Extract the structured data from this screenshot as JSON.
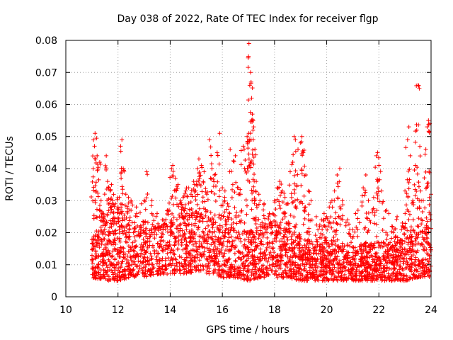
{
  "chart_data": {
    "type": "scatter",
    "title": "Day 038 of 2022, Rate Of TEC Index for receiver flgp",
    "xlabel": "GPS time / hours",
    "ylabel": "ROTI / TECUs",
    "xlim": [
      10,
      24
    ],
    "ylim": [
      0,
      0.08
    ],
    "xticks": [
      10,
      12,
      14,
      16,
      18,
      20,
      22,
      24
    ],
    "yticks": [
      0,
      0.01,
      0.02,
      0.03,
      0.04,
      0.05,
      0.06,
      0.07,
      0.08
    ],
    "xtick_labels": [
      "10",
      "12",
      "14",
      "16",
      "18",
      "20",
      "22",
      "24"
    ],
    "ytick_labels": [
      "0",
      "0.01",
      "0.02",
      "0.03",
      "0.04",
      "0.05",
      "0.06",
      "0.07",
      "0.08"
    ],
    "grid": true,
    "marker": "+",
    "series_color": "#ff0000",
    "data_range": {
      "x_start": 11.0,
      "x_end": 24.0
    },
    "series": [
      {
        "name": "ROTI",
        "points": [
          [
            11.05,
            0.04
          ],
          [
            11.1,
            0.047
          ],
          [
            11.12,
            0.051
          ],
          [
            11.15,
            0.043
          ],
          [
            11.2,
            0.044
          ],
          [
            11.3,
            0.042
          ],
          [
            11.35,
            0.03
          ],
          [
            11.4,
            0.026
          ],
          [
            11.5,
            0.024
          ],
          [
            11.55,
            0.044
          ],
          [
            11.6,
            0.036
          ],
          [
            11.65,
            0.034
          ],
          [
            11.7,
            0.033
          ],
          [
            11.75,
            0.035
          ],
          [
            11.8,
            0.03
          ],
          [
            11.9,
            0.029
          ],
          [
            12.0,
            0.028
          ],
          [
            12.05,
            0.031
          ],
          [
            12.1,
            0.047
          ],
          [
            12.15,
            0.049
          ],
          [
            12.2,
            0.04
          ],
          [
            12.3,
            0.032
          ],
          [
            12.4,
            0.031
          ],
          [
            12.5,
            0.03
          ],
          [
            12.7,
            0.028
          ],
          [
            12.9,
            0.029
          ],
          [
            13.0,
            0.03
          ],
          [
            13.1,
            0.039
          ],
          [
            13.3,
            0.03
          ],
          [
            13.5,
            0.026
          ],
          [
            13.7,
            0.024
          ],
          [
            13.9,
            0.027
          ],
          [
            14.05,
            0.04
          ],
          [
            14.1,
            0.041
          ],
          [
            14.2,
            0.037
          ],
          [
            14.3,
            0.035
          ],
          [
            14.4,
            0.03
          ],
          [
            14.5,
            0.031
          ],
          [
            14.6,
            0.033
          ],
          [
            14.7,
            0.034
          ],
          [
            14.8,
            0.032
          ],
          [
            14.9,
            0.036
          ],
          [
            15.0,
            0.035
          ],
          [
            15.05,
            0.04
          ],
          [
            15.1,
            0.043
          ],
          [
            15.2,
            0.041
          ],
          [
            15.3,
            0.039
          ],
          [
            15.4,
            0.032
          ],
          [
            15.5,
            0.049
          ],
          [
            15.6,
            0.04
          ],
          [
            15.7,
            0.038
          ],
          [
            15.8,
            0.045
          ],
          [
            15.9,
            0.051
          ],
          [
            16.0,
            0.034
          ],
          [
            16.1,
            0.033
          ],
          [
            16.2,
            0.029
          ],
          [
            16.3,
            0.046
          ],
          [
            16.4,
            0.035
          ],
          [
            16.5,
            0.044
          ],
          [
            16.6,
            0.034
          ],
          [
            16.7,
            0.032
          ],
          [
            16.8,
            0.047
          ],
          [
            16.95,
            0.05
          ],
          [
            17.0,
            0.075
          ],
          [
            17.02,
            0.079
          ],
          [
            17.05,
            0.066
          ],
          [
            17.08,
            0.07
          ],
          [
            17.1,
            0.067
          ],
          [
            17.12,
            0.062
          ],
          [
            17.15,
            0.057
          ],
          [
            17.18,
            0.055
          ],
          [
            17.2,
            0.053
          ],
          [
            17.25,
            0.046
          ],
          [
            17.3,
            0.036
          ],
          [
            17.4,
            0.032
          ],
          [
            17.6,
            0.029
          ],
          [
            17.8,
            0.026
          ],
          [
            18.0,
            0.03
          ],
          [
            18.1,
            0.034
          ],
          [
            18.2,
            0.036
          ],
          [
            18.3,
            0.033
          ],
          [
            18.4,
            0.031
          ],
          [
            18.5,
            0.029
          ],
          [
            18.6,
            0.039
          ],
          [
            18.7,
            0.042
          ],
          [
            18.75,
            0.05
          ],
          [
            18.8,
            0.049
          ],
          [
            18.9,
            0.046
          ],
          [
            19.0,
            0.048
          ],
          [
            19.05,
            0.05
          ],
          [
            19.1,
            0.045
          ],
          [
            19.2,
            0.038
          ],
          [
            19.3,
            0.033
          ],
          [
            19.4,
            0.03
          ],
          [
            19.6,
            0.025
          ],
          [
            19.8,
            0.024
          ],
          [
            19.9,
            0.026
          ],
          [
            20.0,
            0.025
          ],
          [
            20.1,
            0.028
          ],
          [
            20.2,
            0.03
          ],
          [
            20.3,
            0.033
          ],
          [
            20.4,
            0.038
          ],
          [
            20.5,
            0.04
          ],
          [
            20.6,
            0.03
          ],
          [
            20.8,
            0.024
          ],
          [
            21.0,
            0.021
          ],
          [
            21.2,
            0.027
          ],
          [
            21.4,
            0.034
          ],
          [
            21.5,
            0.038
          ],
          [
            21.6,
            0.03
          ],
          [
            21.8,
            0.031
          ],
          [
            21.9,
            0.044
          ],
          [
            21.95,
            0.045
          ],
          [
            22.0,
            0.041
          ],
          [
            22.1,
            0.033
          ],
          [
            22.3,
            0.027
          ],
          [
            22.5,
            0.022
          ],
          [
            22.7,
            0.025
          ],
          [
            22.9,
            0.023
          ],
          [
            23.0,
            0.033
          ],
          [
            23.1,
            0.049
          ],
          [
            23.15,
            0.053
          ],
          [
            23.2,
            0.044
          ],
          [
            23.3,
            0.03
          ],
          [
            23.4,
            0.041
          ],
          [
            23.45,
            0.052
          ],
          [
            23.5,
            0.066
          ],
          [
            23.55,
            0.065
          ],
          [
            23.6,
            0.033
          ],
          [
            23.7,
            0.03
          ],
          [
            23.8,
            0.046
          ],
          [
            23.85,
            0.053
          ],
          [
            23.9,
            0.055
          ],
          [
            23.95,
            0.054
          ],
          [
            24.0,
            0.032
          ]
        ],
        "band": [
          [
            11.0,
            0.006,
            0.018
          ],
          [
            11.5,
            0.005,
            0.02
          ],
          [
            12.0,
            0.005,
            0.022
          ],
          [
            12.5,
            0.006,
            0.021
          ],
          [
            13.0,
            0.006,
            0.02
          ],
          [
            13.5,
            0.007,
            0.021
          ],
          [
            14.0,
            0.007,
            0.022
          ],
          [
            14.5,
            0.007,
            0.024
          ],
          [
            15.0,
            0.008,
            0.025
          ],
          [
            15.5,
            0.007,
            0.023
          ],
          [
            16.0,
            0.006,
            0.021
          ],
          [
            16.5,
            0.006,
            0.02
          ],
          [
            17.0,
            0.005,
            0.019
          ],
          [
            17.5,
            0.006,
            0.021
          ],
          [
            18.0,
            0.006,
            0.022
          ],
          [
            18.5,
            0.006,
            0.02
          ],
          [
            19.0,
            0.005,
            0.018
          ],
          [
            19.5,
            0.005,
            0.016
          ],
          [
            20.0,
            0.005,
            0.017
          ],
          [
            20.5,
            0.005,
            0.016
          ],
          [
            21.0,
            0.005,
            0.015
          ],
          [
            21.5,
            0.005,
            0.016
          ],
          [
            22.0,
            0.005,
            0.016
          ],
          [
            22.5,
            0.005,
            0.016
          ],
          [
            23.0,
            0.005,
            0.017
          ],
          [
            23.5,
            0.006,
            0.019
          ],
          [
            24.0,
            0.006,
            0.02
          ]
        ]
      }
    ]
  }
}
